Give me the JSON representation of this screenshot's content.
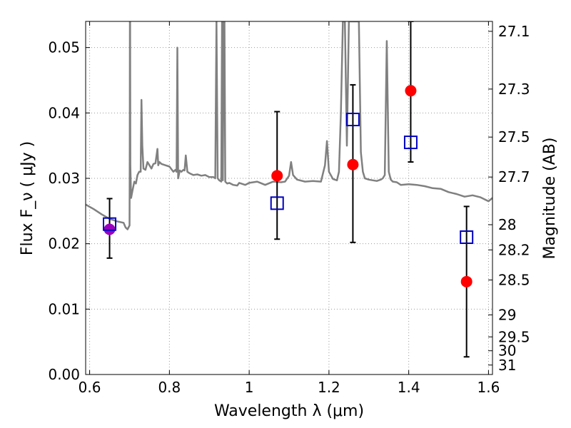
{
  "chart_data": {
    "type": "scatter",
    "title": "",
    "xlabel": "Wavelength  λ (μm)",
    "ylabel": "Flux  F_ν  ( μJy )",
    "y2label": "Magnitude (AB)",
    "xlim": [
      0.59,
      1.61
    ],
    "ylim": [
      0.0,
      0.054
    ],
    "grid": true,
    "x_ticks": [
      {
        "value": 0.6,
        "label": "0.6"
      },
      {
        "value": 0.8,
        "label": "0.8"
      },
      {
        "value": 1.0,
        "label": "1"
      },
      {
        "value": 1.2,
        "label": "1.2"
      },
      {
        "value": 1.4,
        "label": "1.4"
      },
      {
        "value": 1.6,
        "label": "1.6"
      }
    ],
    "y_ticks": [
      {
        "value": 0.0,
        "label": "0.00"
      },
      {
        "value": 0.01,
        "label": "0.01"
      },
      {
        "value": 0.02,
        "label": "0.02"
      },
      {
        "value": 0.03,
        "label": "0.03"
      },
      {
        "value": 0.04,
        "label": "0.04"
      },
      {
        "value": 0.05,
        "label": "0.05"
      }
    ],
    "y2_ticks": [
      {
        "mag": 27.1,
        "label": "27.1"
      },
      {
        "mag": 27.3,
        "label": "27.3"
      },
      {
        "mag": 27.5,
        "label": "27.5"
      },
      {
        "mag": 27.7,
        "label": "27.7"
      },
      {
        "mag": 28.0,
        "label": "28"
      },
      {
        "mag": 28.2,
        "label": "28.2"
      },
      {
        "mag": 28.5,
        "label": "28.5"
      },
      {
        "mag": 29.0,
        "label": "29"
      },
      {
        "mag": 29.5,
        "label": "29.5"
      },
      {
        "mag": 30.0,
        "label": "30"
      },
      {
        "mag": 31.0,
        "label": "31"
      }
    ],
    "colors": {
      "model_spectrum": "#808080",
      "observed": "#ff0000",
      "model_photometry": "#0000c0",
      "overlap": "#9a00c0",
      "errorbar": "#000000",
      "grid": "#9a9a9a"
    },
    "model_spectrum": {
      "x": [
        0.59,
        0.61,
        0.63,
        0.65,
        0.67,
        0.685,
        0.69,
        0.695,
        0.7,
        0.7005,
        0.701,
        0.7015,
        0.702,
        0.704,
        0.707,
        0.712,
        0.716,
        0.72,
        0.724,
        0.728,
        0.73,
        0.732,
        0.735,
        0.74,
        0.745,
        0.75,
        0.755,
        0.76,
        0.765,
        0.77,
        0.772,
        0.775,
        0.78,
        0.79,
        0.8,
        0.81,
        0.815,
        0.818,
        0.82,
        0.822,
        0.826,
        0.83,
        0.835,
        0.838,
        0.841,
        0.845,
        0.85,
        0.86,
        0.87,
        0.88,
        0.89,
        0.9,
        0.91,
        0.915,
        0.918,
        0.921,
        0.925,
        0.93,
        0.932,
        0.934,
        0.936,
        0.938,
        0.94,
        0.945,
        0.95,
        0.96,
        0.97,
        0.975,
        0.98,
        0.99,
        1.0,
        1.02,
        1.04,
        1.06,
        1.08,
        1.09,
        1.1,
        1.105,
        1.11,
        1.12,
        1.14,
        1.16,
        1.18,
        1.19,
        1.195,
        1.2,
        1.21,
        1.22,
        1.225,
        1.23,
        1.235,
        1.24,
        1.245,
        1.25,
        1.255,
        1.26,
        1.265,
        1.27,
        1.275,
        1.28,
        1.285,
        1.29,
        1.3,
        1.31,
        1.32,
        1.33,
        1.335,
        1.34,
        1.345,
        1.35,
        1.355,
        1.36,
        1.37,
        1.38,
        1.4,
        1.42,
        1.44,
        1.46,
        1.48,
        1.5,
        1.52,
        1.54,
        1.56,
        1.58,
        1.6,
        1.61
      ],
      "y": [
        0.026,
        0.0253,
        0.0245,
        0.0238,
        0.0234,
        0.0232,
        0.0225,
        0.0222,
        0.0228,
        0.035,
        0.054,
        0.054,
        0.032,
        0.027,
        0.028,
        0.0295,
        0.0292,
        0.0305,
        0.031,
        0.031,
        0.042,
        0.035,
        0.0315,
        0.0313,
        0.0325,
        0.032,
        0.0315,
        0.0322,
        0.0323,
        0.0345,
        0.032,
        0.0325,
        0.0322,
        0.032,
        0.0318,
        0.031,
        0.0313,
        0.031,
        0.05,
        0.03,
        0.0312,
        0.031,
        0.0313,
        0.0312,
        0.0335,
        0.031,
        0.0308,
        0.0305,
        0.0306,
        0.0304,
        0.0305,
        0.0302,
        0.0302,
        0.03,
        0.054,
        0.03,
        0.0297,
        0.0295,
        0.054,
        0.0297,
        0.054,
        0.054,
        0.0295,
        0.0292,
        0.0293,
        0.029,
        0.0289,
        0.0293,
        0.0292,
        0.029,
        0.0293,
        0.0295,
        0.029,
        0.0295,
        0.0294,
        0.0295,
        0.0304,
        0.0325,
        0.0305,
        0.0298,
        0.0295,
        0.0296,
        0.0295,
        0.032,
        0.0357,
        0.031,
        0.0299,
        0.0297,
        0.031,
        0.04,
        0.054,
        0.054,
        0.035,
        0.054,
        0.054,
        0.054,
        0.054,
        0.054,
        0.054,
        0.034,
        0.031,
        0.03,
        0.0298,
        0.0297,
        0.0296,
        0.0298,
        0.03,
        0.0305,
        0.051,
        0.031,
        0.0298,
        0.0295,
        0.0294,
        0.029,
        0.0291,
        0.029,
        0.0288,
        0.0285,
        0.0284,
        0.0279,
        0.0276,
        0.0272,
        0.0274,
        0.0271,
        0.0265,
        0.027
      ]
    },
    "series": [
      {
        "marker": "square",
        "x": [
          0.65,
          1.07,
          1.26,
          1.405,
          1.545
        ],
        "y": [
          0.023,
          0.0262,
          0.039,
          0.0355,
          0.021
        ]
      },
      {
        "marker": "circle",
        "x": [
          0.65,
          1.07,
          1.26,
          1.405,
          1.545
        ],
        "y": [
          0.0222,
          0.0304,
          0.0321,
          0.0434,
          0.0142
        ],
        "yerr_low": [
          0.0178,
          0.0207,
          0.0202,
          0.0325,
          0.0027
        ],
        "yerr_high": [
          0.0269,
          0.0402,
          0.0443,
          0.054,
          0.0257
        ]
      }
    ]
  }
}
